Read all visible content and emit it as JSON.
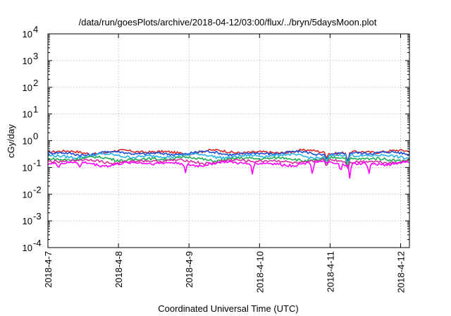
{
  "chart_data": {
    "type": "line",
    "title": "/data/run/goesPlots/archive/2018-04-12/03:00/flux/../bryn/5daysMoon.plot",
    "xlabel": "Coordinated Universal Time (UTC)",
    "ylabel": "cGy/day",
    "yscale": "log",
    "ylim": [
      0.0001,
      10000
    ],
    "yticks": [
      {
        "base": "10",
        "exp": "-4"
      },
      {
        "base": "10",
        "exp": "-3"
      },
      {
        "base": "10",
        "exp": "-2"
      },
      {
        "base": "10",
        "exp": "-1"
      },
      {
        "base": "10",
        "exp": "0"
      },
      {
        "base": "10",
        "exp": "1"
      },
      {
        "base": "10",
        "exp": "2"
      },
      {
        "base": "10",
        "exp": "3"
      },
      {
        "base": "10",
        "exp": "4"
      }
    ],
    "xlim": [
      "2018-04-07",
      "2018-04-12 03:00"
    ],
    "xticks": [
      "2018-4-7",
      "2018-4-8",
      "2018-4-9",
      "2018-4-10",
      "2018-4-11",
      "2018-4-12"
    ],
    "grid": true,
    "series": [
      {
        "color": "#d62728",
        "level": 0.38,
        "dips": [
          {
            "x": 3.95,
            "y": 0.18
          },
          {
            "x": 4.25,
            "y": 0.12
          }
        ]
      },
      {
        "color": "#1f4fd6",
        "level": 0.34,
        "dips": [
          {
            "x": 3.95,
            "y": 0.16
          },
          {
            "x": 4.25,
            "y": 0.11
          }
        ]
      },
      {
        "color": "#2bb0e8",
        "level": 0.27,
        "dips": [
          {
            "x": 3.95,
            "y": 0.14
          },
          {
            "x": 4.25,
            "y": 0.09
          }
        ]
      },
      {
        "color": "#22aa55",
        "level": 0.21,
        "dips": [
          {
            "x": 3.95,
            "y": 0.12
          },
          {
            "x": 4.25,
            "y": 0.08
          }
        ]
      },
      {
        "color": "#d02fa0",
        "level": 0.17,
        "dips": [
          {
            "x": 3.95,
            "y": 0.1
          },
          {
            "x": 4.25,
            "y": 0.06
          }
        ]
      },
      {
        "color": "#ff00ff",
        "level": 0.14,
        "dips": [
          {
            "x": 0.15,
            "y": 0.09
          },
          {
            "x": 0.45,
            "y": 0.1
          },
          {
            "x": 1.95,
            "y": 0.06
          },
          {
            "x": 2.9,
            "y": 0.05
          },
          {
            "x": 3.75,
            "y": 0.045
          },
          {
            "x": 4.15,
            "y": 0.06
          },
          {
            "x": 4.28,
            "y": 0.03
          },
          {
            "x": 4.55,
            "y": 0.05
          }
        ]
      }
    ]
  }
}
